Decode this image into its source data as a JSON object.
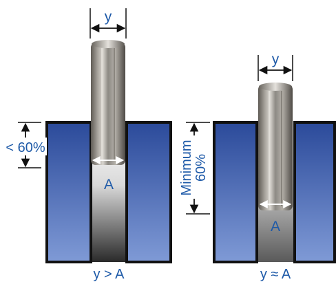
{
  "diagram": {
    "left": {
      "top_dimension": "y",
      "side_label": "< 60%",
      "bottom_dimension": "A",
      "caption": "y > A"
    },
    "right": {
      "top_dimension": "y",
      "side_label": "Minimum 60%",
      "side_label_line1": "Minimum",
      "side_label_line2": "60%",
      "bottom_dimension": "A",
      "caption": "y ≈ A"
    },
    "colors": {
      "label": "#1e5aa8",
      "block_dark": "#2b4a9a",
      "block_light": "#7f9ad6",
      "outline": "#111111",
      "pin_metal": "#8d8a84"
    }
  }
}
